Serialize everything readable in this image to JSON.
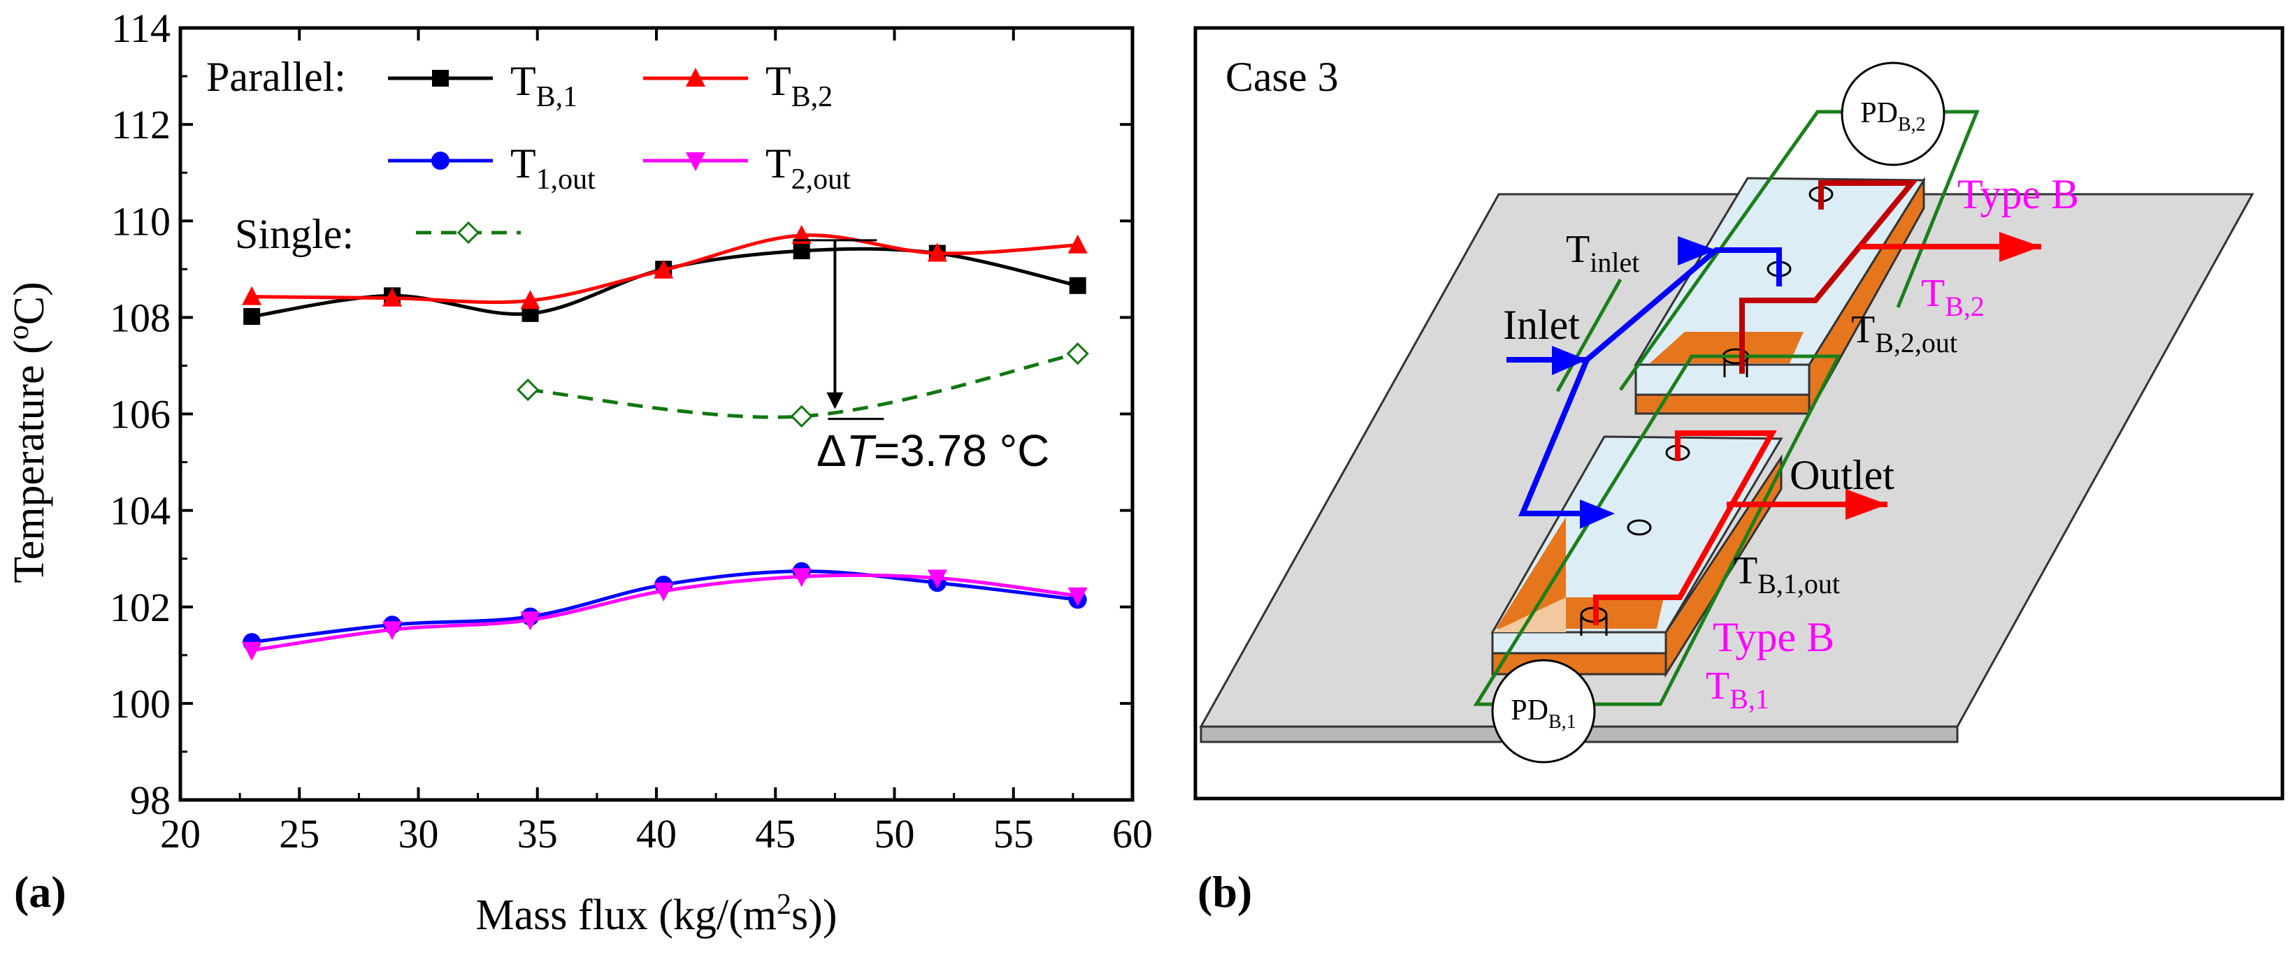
{
  "panel_a": {
    "label": "(a)"
  },
  "panel_b": {
    "label": "(b)"
  },
  "chart_data": {
    "type": "line",
    "xlabel": "Mass flux (kg/(m²s))",
    "ylabel": "Temperature (°C)",
    "xlim": [
      20,
      60
    ],
    "ylim": [
      98,
      114
    ],
    "xticks": [
      20,
      25,
      30,
      35,
      40,
      45,
      50,
      55,
      60
    ],
    "yticks": [
      98,
      100,
      102,
      104,
      106,
      108,
      110,
      112,
      114
    ],
    "legend": {
      "parallel_label": "Parallel:",
      "single_label": "Single:"
    },
    "series": [
      {
        "name": "T_B,1",
        "base": "T",
        "sub": "B,1",
        "color": "#000000",
        "marker": "square",
        "dash": "",
        "x": [
          23.0,
          28.9,
          34.7,
          40.3,
          46.1,
          51.8,
          57.7
        ],
        "y": [
          108.02,
          108.45,
          108.08,
          109.0,
          109.38,
          109.33,
          108.66
        ]
      },
      {
        "name": "T_B,2",
        "base": "T",
        "sub": "B,2",
        "color": "#ff0000",
        "marker": "triangle-up",
        "dash": "",
        "x": [
          23.0,
          28.9,
          34.7,
          40.3,
          46.1,
          51.8,
          57.7
        ],
        "y": [
          108.43,
          108.4,
          108.35,
          108.98,
          109.7,
          109.33,
          109.5
        ]
      },
      {
        "name": "T_1,out",
        "base": "T",
        "sub": "1,out",
        "color": "#0000ff",
        "marker": "circle",
        "dash": "",
        "x": [
          23.0,
          28.9,
          34.7,
          40.3,
          46.1,
          51.8,
          57.7
        ],
        "y": [
          101.27,
          101.63,
          101.8,
          102.46,
          102.74,
          102.5,
          102.15
        ]
      },
      {
        "name": "T_2,out",
        "base": "T",
        "sub": "2,out",
        "color": "#ff00ff",
        "marker": "triangle-down",
        "dash": "",
        "x": [
          23.0,
          28.9,
          34.7,
          40.3,
          46.1,
          51.8,
          57.7
        ],
        "y": [
          101.1,
          101.53,
          101.73,
          102.33,
          102.63,
          102.6,
          102.23
        ]
      },
      {
        "name": "Single",
        "base": "",
        "sub": "",
        "color": "#117711",
        "marker": "diamond-open",
        "dash": "22,14",
        "x": [
          34.6,
          46.1,
          57.7
        ],
        "y": [
          106.5,
          105.95,
          107.25
        ]
      }
    ],
    "annotation": {
      "text_delta": "Δ",
      "text_var": "T",
      "text_value": "=3.78 °C",
      "value": 3.78,
      "x": 47.5,
      "y_top": 109.6,
      "y_bottom": 106.1
    }
  },
  "diagram": {
    "case_title": "Case 3",
    "pd_top": {
      "base": "PD",
      "sub": "B,2"
    },
    "pd_bottom": {
      "base": "PD",
      "sub": "B,1"
    },
    "t_inlet": {
      "base": "T",
      "sub": "inlet"
    },
    "inlet_label": "Inlet",
    "outlet_label": "Outlet",
    "type_top": "Type B",
    "type_bottom": "Type B",
    "tb2": {
      "base": "T",
      "sub": "B,2"
    },
    "tb2out": {
      "base": "T",
      "sub": "B,2,out"
    },
    "tb1out": {
      "base": "T",
      "sub": "B,1,out"
    },
    "tb1": {
      "base": "T",
      "sub": "B,1"
    },
    "colors": {
      "plate": "#d9d9d9",
      "copper": "#e6761e",
      "glass": "#dcedf5",
      "blue": "#0000ff",
      "red": "#ff0000",
      "darkred": "#c00000",
      "green": "#1a7f1a",
      "magenta": "#ff00ff"
    }
  }
}
